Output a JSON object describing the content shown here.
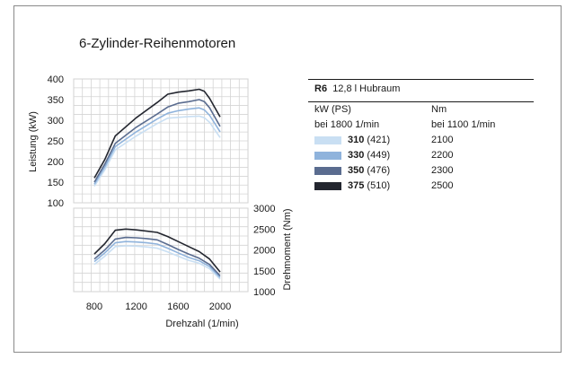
{
  "title": "6-Zylinder-Reihenmotoren",
  "legend": {
    "heading_left": "R6",
    "heading_right": "12,8 l Hubraum",
    "col1_header": "kW (PS)",
    "col2_header": "Nm",
    "col1_sub": "bei 1800 1/min",
    "col2_sub": "bei 1100 1/min",
    "rows": [
      {
        "kw": "310",
        "ps": "(421)",
        "nm": "2100",
        "color": "#c9dff3"
      },
      {
        "kw": "330",
        "ps": "(449)",
        "nm": "2200",
        "color": "#8fb3dc"
      },
      {
        "kw": "350",
        "ps": "(476)",
        "nm": "2300",
        "color": "#5a6c8f"
      },
      {
        "kw": "375",
        "ps": "(510)",
        "nm": "2500",
        "color": "#23262f"
      }
    ]
  },
  "chart_data": [
    {
      "type": "line",
      "ylabel": "Leistung (kW)",
      "ylim": [
        100,
        400
      ],
      "xlim": [
        800,
        2000
      ],
      "yticks": [
        "100",
        "150",
        "200",
        "250",
        "300",
        "350",
        "400"
      ],
      "grid": true,
      "series": [
        {
          "name": "310 (421)",
          "color": "#c9dff3",
          "x": [
            800,
            900,
            1000,
            1200,
            1400,
            1500,
            1600,
            1700,
            1800,
            1850,
            1900,
            2000
          ],
          "y": [
            140,
            180,
            228,
            262,
            292,
            305,
            307,
            309,
            310,
            306,
            295,
            258
          ]
        },
        {
          "name": "330 (449)",
          "color": "#8fb3dc",
          "x": [
            800,
            900,
            1000,
            1200,
            1400,
            1500,
            1600,
            1700,
            1800,
            1850,
            1900,
            2000
          ],
          "y": [
            145,
            187,
            236,
            272,
            303,
            317,
            323,
            327,
            330,
            325,
            312,
            272
          ]
        },
        {
          "name": "350 (476)",
          "color": "#5a6c8f",
          "x": [
            800,
            900,
            1000,
            1200,
            1400,
            1500,
            1600,
            1700,
            1800,
            1850,
            1900,
            2000
          ],
          "y": [
            150,
            194,
            244,
            283,
            315,
            332,
            341,
            345,
            350,
            345,
            330,
            285
          ]
        },
        {
          "name": "375 (510)",
          "color": "#23262f",
          "x": [
            800,
            900,
            1000,
            1200,
            1400,
            1500,
            1600,
            1700,
            1800,
            1850,
            1900,
            2000
          ],
          "y": [
            160,
            205,
            262,
            306,
            343,
            363,
            368,
            371,
            375,
            370,
            353,
            308
          ]
        }
      ]
    },
    {
      "type": "line",
      "xlabel": "Drehzahl (1/min)",
      "ylabel": "Drehmoment (Nm)",
      "xlim": [
        800,
        2000
      ],
      "ylim": [
        1000,
        3000
      ],
      "xticks": [
        "800",
        "1200",
        "1600",
        "2000"
      ],
      "yticks": [
        "1000",
        "1500",
        "2000",
        "2500",
        "3000"
      ],
      "grid": true,
      "series": [
        {
          "name": "310 (421)",
          "color": "#c9dff3",
          "x": [
            800,
            900,
            1000,
            1100,
            1200,
            1300,
            1400,
            1500,
            1600,
            1700,
            1800,
            1900,
            2000
          ],
          "y": [
            1650,
            1850,
            2080,
            2100,
            2090,
            2070,
            2040,
            1950,
            1850,
            1750,
            1680,
            1550,
            1300
          ]
        },
        {
          "name": "330 (449)",
          "color": "#8fb3dc",
          "x": [
            800,
            900,
            1000,
            1100,
            1200,
            1300,
            1400,
            1500,
            1600,
            1700,
            1800,
            1900,
            2000
          ],
          "y": [
            1720,
            1930,
            2170,
            2200,
            2190,
            2170,
            2140,
            2040,
            1930,
            1820,
            1740,
            1600,
            1340
          ]
        },
        {
          "name": "350 (476)",
          "color": "#5a6c8f",
          "x": [
            800,
            900,
            1000,
            1100,
            1200,
            1300,
            1400,
            1500,
            1600,
            1700,
            1800,
            1900,
            2000
          ],
          "y": [
            1780,
            2000,
            2260,
            2300,
            2290,
            2270,
            2240,
            2130,
            2010,
            1900,
            1800,
            1650,
            1380
          ]
        },
        {
          "name": "375 (510)",
          "color": "#23262f",
          "x": [
            800,
            900,
            1000,
            1100,
            1200,
            1300,
            1400,
            1500,
            1600,
            1700,
            1800,
            1900,
            2000
          ],
          "y": [
            1900,
            2150,
            2470,
            2500,
            2480,
            2450,
            2420,
            2320,
            2200,
            2080,
            1960,
            1780,
            1470
          ]
        }
      ]
    }
  ]
}
